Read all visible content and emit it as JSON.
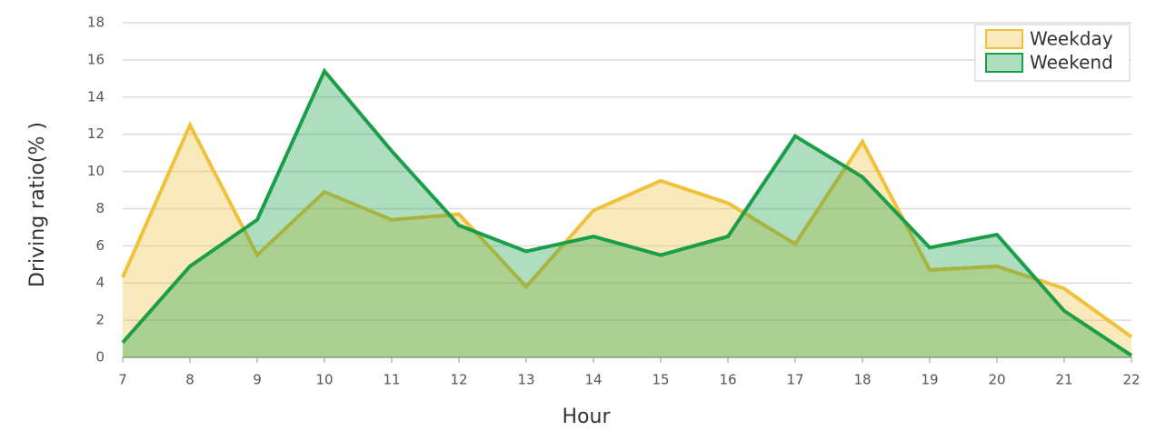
{
  "chart_data": {
    "type": "area",
    "x_label": "Hour",
    "y_label": "Driving ratio(% )",
    "x": [
      7,
      8,
      9,
      10,
      11,
      12,
      13,
      14,
      15,
      16,
      17,
      18,
      19,
      20,
      21,
      22
    ],
    "series": [
      {
        "name": "Weekday",
        "color": "#f0c23c",
        "values": [
          4.3,
          12.5,
          5.5,
          8.9,
          7.4,
          7.7,
          3.8,
          7.9,
          9.5,
          8.3,
          6.1,
          11.6,
          4.7,
          4.9,
          3.7,
          1.1
        ]
      },
      {
        "name": "Weekend",
        "color": "#1a9e48",
        "values": [
          0.8,
          4.9,
          7.4,
          15.4,
          11.1,
          7.1,
          5.7,
          6.5,
          5.5,
          6.5,
          11.9,
          9.7,
          5.9,
          6.6,
          2.5,
          0.1
        ]
      }
    ],
    "xlim": [
      7,
      22
    ],
    "xticks": [
      7,
      8,
      9,
      10,
      11,
      12,
      13,
      14,
      15,
      16,
      17,
      18,
      19,
      20,
      21,
      22
    ],
    "ylim": [
      0,
      18
    ],
    "yticks": [
      0,
      2,
      4,
      6,
      8,
      10,
      12,
      14,
      16,
      18
    ],
    "grid": true,
    "legend": "upper right"
  }
}
